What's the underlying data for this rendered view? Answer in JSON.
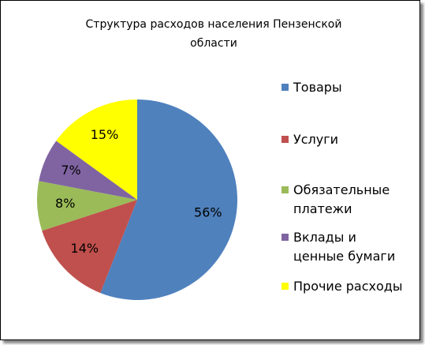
{
  "chart_data": {
    "type": "pie",
    "title": "Структура расходов населения Пензенской области",
    "categories": [
      "Товары",
      "Услуги",
      "Обязательные платежи",
      "Вклады и ценные бумаги",
      "Прочие расходы"
    ],
    "values": [
      56,
      14,
      8,
      7,
      15
    ],
    "value_labels": [
      "56%",
      "14%",
      "8%",
      "7%",
      "15%"
    ],
    "colors": [
      "#4f81bd",
      "#c0504d",
      "#9bbb59",
      "#8064a2",
      "#ffff00"
    ],
    "legend": "right"
  }
}
